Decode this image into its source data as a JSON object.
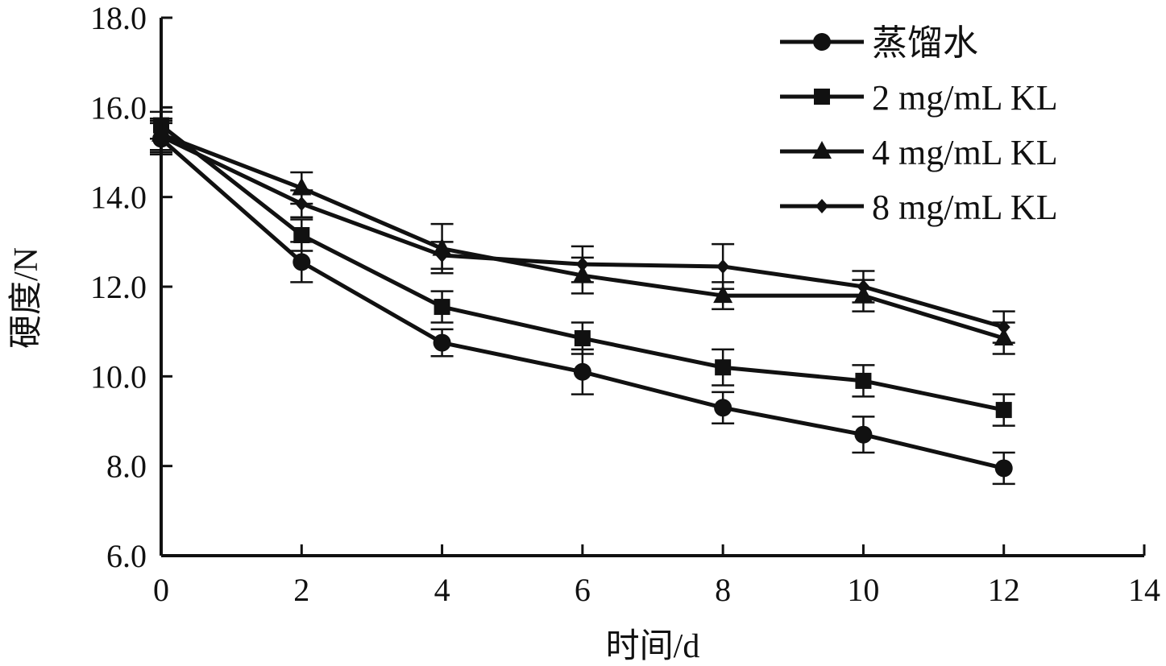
{
  "chart_data": {
    "type": "line",
    "xlabel": "时间/d",
    "ylabel": "硬度/N",
    "xlim": [
      0,
      14
    ],
    "ylim": [
      6.0,
      18.0
    ],
    "xticks": [
      "0",
      "2",
      "4",
      "6",
      "8",
      "10",
      "12",
      "14"
    ],
    "yticks": [
      "6.0",
      "8.0",
      "10.0",
      "12.0",
      "14.0",
      "16.0",
      "18.0"
    ],
    "grid": false,
    "legend_position": "top-right",
    "x": [
      0,
      2,
      4,
      6,
      8,
      10,
      12
    ],
    "series": [
      {
        "name": "蒸馏水",
        "marker": "circle",
        "values": [
          15.3,
          12.55,
          10.75,
          10.1,
          9.3,
          8.7,
          7.95
        ],
        "errors": [
          0.35,
          0.45,
          0.3,
          0.5,
          0.35,
          0.4,
          0.35
        ]
      },
      {
        "name": "2 mg/mL KL",
        "marker": "square",
        "values": [
          15.6,
          13.15,
          11.55,
          10.85,
          10.2,
          9.9,
          9.25
        ],
        "errors": [
          0.3,
          0.35,
          0.35,
          0.35,
          0.4,
          0.35,
          0.35
        ]
      },
      {
        "name": "4 mg/mL KL",
        "marker": "triangle",
        "values": [
          15.4,
          14.2,
          12.85,
          12.25,
          11.8,
          11.8,
          10.85
        ],
        "errors": [
          0.35,
          0.35,
          0.55,
          0.4,
          0.3,
          0.35,
          0.35
        ]
      },
      {
        "name": "8 mg/mL KL",
        "marker": "diamond",
        "values": [
          15.35,
          13.85,
          12.7,
          12.5,
          12.45,
          12.0,
          11.1
        ],
        "errors": [
          0.35,
          0.3,
          0.3,
          0.4,
          0.5,
          0.35,
          0.35
        ]
      }
    ],
    "colors": {
      "line": "#111111",
      "background": "#ffffff"
    }
  }
}
